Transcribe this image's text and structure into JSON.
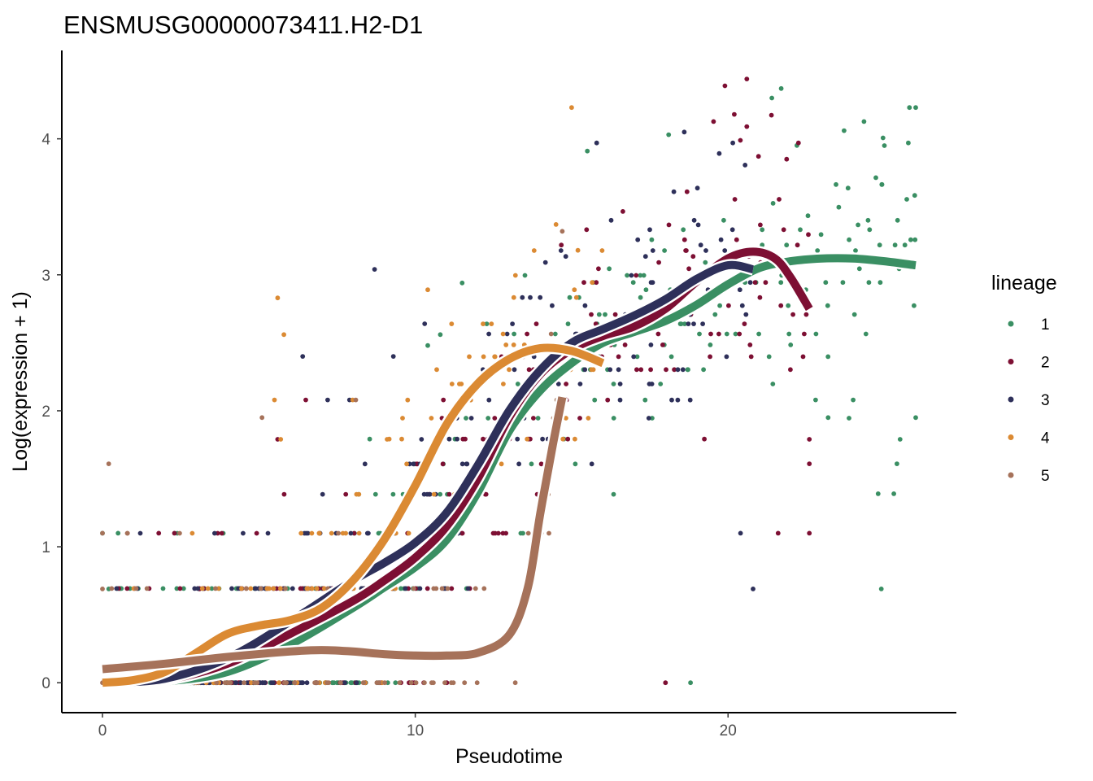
{
  "chart_data": {
    "type": "scatter",
    "title": "ENSMUSG00000073411.H2-D1",
    "xlabel": "Pseudotime",
    "ylabel": "Log(expression + 1)",
    "xlim": [
      -1.3,
      27.3
    ],
    "ylim": [
      -0.22,
      4.65
    ],
    "x_ticks": [
      0,
      10,
      20
    ],
    "x_tick_labels": [
      "0",
      "10",
      "20"
    ],
    "y_ticks": [
      0,
      1,
      2,
      3,
      4
    ],
    "y_tick_labels": [
      "0",
      "1",
      "2",
      "3",
      "4"
    ],
    "grid": false,
    "legend": {
      "title": "lineage",
      "position": "right",
      "entries": [
        {
          "label": "1",
          "color": "#3a8f63"
        },
        {
          "label": "2",
          "color": "#7d0f33"
        },
        {
          "label": "3",
          "color": "#2e305a"
        },
        {
          "label": "4",
          "color": "#db8a33"
        },
        {
          "label": "5",
          "color": "#a6725a"
        }
      ]
    },
    "expression_levels": [
      0,
      0.693,
      1.099,
      1.386,
      1.609,
      1.792,
      1.946,
      2.079,
      2.197,
      2.303,
      2.398,
      2.485,
      2.565,
      2.639,
      2.708,
      2.773,
      2.833,
      2.89,
      2.944,
      2.996,
      3.045,
      3.091,
      3.135,
      3.178,
      3.219,
      3.258,
      3.296,
      3.332,
      3.367,
      3.401,
      3.434,
      3.466,
      3.497,
      3.526,
      3.555,
      3.584,
      3.611,
      3.638,
      3.664,
      3.689,
      3.714,
      3.738,
      3.761,
      3.784,
      3.807,
      3.829,
      3.85,
      3.871,
      3.892,
      3.912,
      3.932,
      3.951,
      3.97,
      3.989,
      4.007,
      4.025,
      4.043,
      4.06,
      4.078,
      4.094,
      4.111,
      4.127,
      4.143,
      4.159,
      4.174,
      4.19,
      4.205,
      4.22,
      4.234,
      4.248,
      4.263,
      4.277,
      4.29,
      4.304,
      4.317,
      4.331,
      4.344,
      4.357,
      4.369,
      4.382,
      4.394,
      4.407,
      4.419,
      4.431,
      4.443
    ],
    "series": [
      {
        "name": "1",
        "color": "#3a8f63",
        "point_range": {
          "x_min": 0,
          "x_max": 26,
          "y_max": 4.37
        },
        "points": [
          [
            0.0,
            1.1
          ],
          [
            0.5,
            1.1
          ],
          [
            0.2,
            0.69
          ],
          [
            24.9,
            0.69
          ],
          [
            26,
            4.23
          ],
          [
            25.8,
            4.23
          ],
          [
            21.7,
            4.37
          ],
          [
            21.4,
            4.3
          ],
          [
            25.0,
            3.95
          ],
          [
            24.8,
            1.39
          ],
          [
            25.3,
            1.39
          ],
          [
            25.4,
            1.61
          ],
          [
            25.5,
            1.79
          ],
          [
            22.8,
            2.08
          ],
          [
            24.0,
            2.08
          ],
          [
            23.2,
            1.95
          ],
          [
            26,
            1.95
          ],
          [
            18.8,
            0.0
          ],
          [
            11.5,
            2.94
          ],
          [
            10.8,
            2.56
          ],
          [
            10.4,
            2.48
          ],
          [
            15.5,
            3.91
          ],
          [
            18.1,
            4.03
          ]
        ],
        "curve": [
          [
            0.15,
            0.0
          ],
          [
            2,
            0.01
          ],
          [
            4,
            0.08
          ],
          [
            6,
            0.28
          ],
          [
            8,
            0.55
          ],
          [
            9,
            0.7
          ],
          [
            10,
            0.85
          ],
          [
            11,
            1.05
          ],
          [
            12,
            1.4
          ],
          [
            13,
            1.85
          ],
          [
            14,
            2.15
          ],
          [
            15,
            2.35
          ],
          [
            16,
            2.5
          ],
          [
            17,
            2.58
          ],
          [
            18,
            2.66
          ],
          [
            19,
            2.78
          ],
          [
            20,
            2.93
          ],
          [
            21,
            3.05
          ],
          [
            22,
            3.1
          ],
          [
            23,
            3.12
          ],
          [
            24,
            3.12
          ],
          [
            25,
            3.1
          ],
          [
            26,
            3.07
          ]
        ]
      },
      {
        "name": "2",
        "color": "#7d0f33",
        "point_range": {
          "x_min": 0,
          "x_max": 22.6,
          "y_max": 4.44
        },
        "points": [
          [
            1.8,
            1.1
          ],
          [
            2.3,
            1.1
          ],
          [
            3.1,
            0.69
          ],
          [
            18,
            0.0
          ],
          [
            19.9,
            4.39
          ],
          [
            20.6,
            4.44
          ],
          [
            20.2,
            4.18
          ],
          [
            20.6,
            4.09
          ],
          [
            22.6,
            1.1
          ],
          [
            21.6,
            1.1
          ],
          [
            22.6,
            1.61
          ],
          [
            22.6,
            1.79
          ],
          [
            5.6,
            1.79
          ],
          [
            6.5,
            2.08
          ],
          [
            10.9,
            2.08
          ]
        ],
        "curve": [
          [
            0.15,
            0.0
          ],
          [
            2,
            0.02
          ],
          [
            4,
            0.14
          ],
          [
            6,
            0.36
          ],
          [
            8,
            0.6
          ],
          [
            9,
            0.75
          ],
          [
            10,
            0.92
          ],
          [
            11,
            1.15
          ],
          [
            12,
            1.5
          ],
          [
            13,
            1.95
          ],
          [
            14,
            2.27
          ],
          [
            15,
            2.45
          ],
          [
            16,
            2.55
          ],
          [
            17,
            2.62
          ],
          [
            18,
            2.75
          ],
          [
            19,
            2.95
          ],
          [
            20,
            3.12
          ],
          [
            20.8,
            3.17
          ],
          [
            21.5,
            3.12
          ],
          [
            22,
            2.98
          ],
          [
            22.6,
            2.75
          ]
        ]
      },
      {
        "name": "3",
        "color": "#2e305a",
        "point_range": {
          "x_min": 0,
          "x_max": 20.8,
          "y_max": 4.05
        },
        "points": [
          [
            8.7,
            3.04
          ],
          [
            10.3,
            2.64
          ],
          [
            9.3,
            2.4
          ],
          [
            6.4,
            2.4
          ],
          [
            20.8,
            0.69
          ],
          [
            20.4,
            1.1
          ],
          [
            18.6,
            4.05
          ],
          [
            15.8,
            3.97
          ],
          [
            7.2,
            2.08
          ],
          [
            7.9,
            2.08
          ],
          [
            10.2,
            1.79
          ]
        ],
        "curve": [
          [
            0.15,
            0.0
          ],
          [
            2,
            0.03
          ],
          [
            4,
            0.18
          ],
          [
            6,
            0.45
          ],
          [
            8,
            0.75
          ],
          [
            9,
            0.88
          ],
          [
            10,
            1.03
          ],
          [
            11,
            1.25
          ],
          [
            12,
            1.6
          ],
          [
            13,
            2.0
          ],
          [
            14,
            2.3
          ],
          [
            15,
            2.5
          ],
          [
            16,
            2.6
          ],
          [
            17,
            2.7
          ],
          [
            18,
            2.82
          ],
          [
            19,
            2.97
          ],
          [
            20,
            3.07
          ],
          [
            20.8,
            3.04
          ]
        ]
      },
      {
        "name": "4",
        "color": "#db8a33",
        "point_range": {
          "x_min": 0,
          "x_max": 16,
          "y_max": 4.23
        },
        "points": [
          [
            15.0,
            4.23
          ],
          [
            5.6,
            2.83
          ],
          [
            5.8,
            2.56
          ],
          [
            10.4,
            2.89
          ],
          [
            5.5,
            2.08
          ],
          [
            5.7,
            1.79
          ],
          [
            8.0,
            2.08
          ],
          [
            9.1,
            1.79
          ],
          [
            14.5,
            3.37
          ],
          [
            15.2,
            3.18
          ],
          [
            14.6,
            2.08
          ]
        ],
        "curve": [
          [
            0.0,
            0.0
          ],
          [
            1,
            0.02
          ],
          [
            2,
            0.08
          ],
          [
            3,
            0.22
          ],
          [
            4,
            0.36
          ],
          [
            5,
            0.42
          ],
          [
            6,
            0.46
          ],
          [
            7,
            0.55
          ],
          [
            8,
            0.75
          ],
          [
            9,
            1.05
          ],
          [
            10,
            1.45
          ],
          [
            11,
            1.9
          ],
          [
            12,
            2.2
          ],
          [
            13,
            2.38
          ],
          [
            14,
            2.46
          ],
          [
            15,
            2.44
          ],
          [
            16,
            2.35
          ]
        ]
      },
      {
        "name": "5",
        "color": "#a6725a",
        "point_range": {
          "x_min": 0,
          "x_max": 14.7,
          "y_max": 3.32
        },
        "points": [
          [
            0.2,
            1.61
          ],
          [
            5.1,
            1.95
          ],
          [
            8.1,
            2.08
          ],
          [
            14.7,
            3.32
          ],
          [
            14.6,
            2.08
          ],
          [
            0.0,
            1.1
          ],
          [
            0.0,
            0.69
          ],
          [
            0.0,
            0.0
          ]
        ],
        "curve": [
          [
            0.0,
            0.1
          ],
          [
            2,
            0.14
          ],
          [
            4,
            0.19
          ],
          [
            6,
            0.23
          ],
          [
            7,
            0.24
          ],
          [
            8,
            0.23
          ],
          [
            9,
            0.21
          ],
          [
            10,
            0.2
          ],
          [
            11,
            0.2
          ],
          [
            12,
            0.22
          ],
          [
            13,
            0.35
          ],
          [
            13.6,
            0.7
          ],
          [
            14.0,
            1.25
          ],
          [
            14.4,
            1.75
          ],
          [
            14.7,
            2.1
          ]
        ]
      }
    ]
  }
}
